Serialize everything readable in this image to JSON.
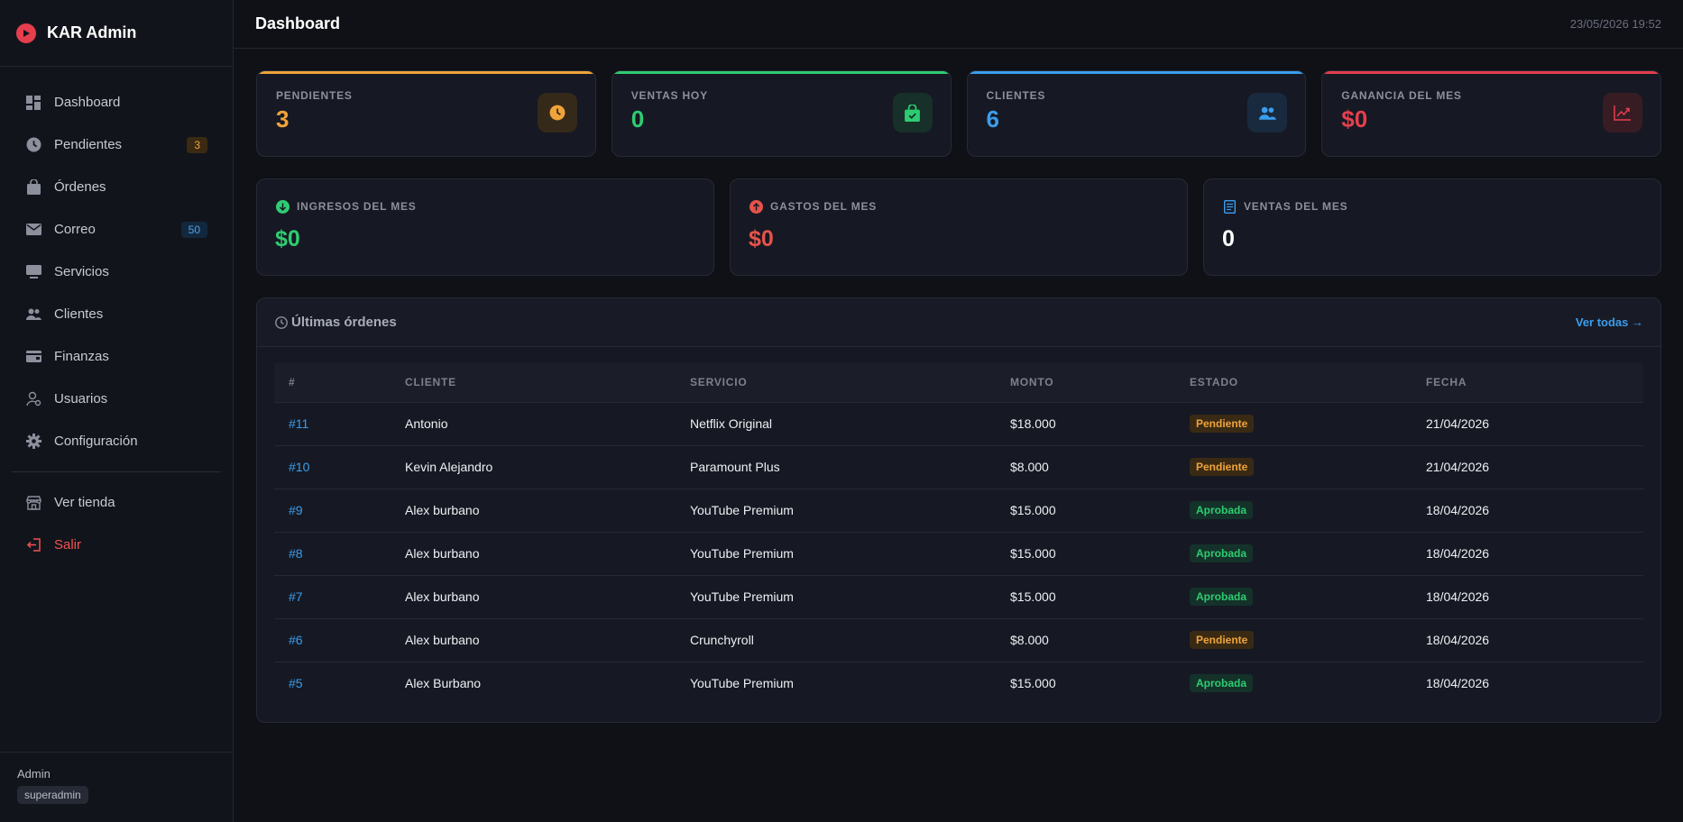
{
  "brand": {
    "title": "KAR Admin"
  },
  "sidebar": {
    "items": [
      {
        "label": "Dashboard",
        "icon": "dashboard-icon",
        "badge": ""
      },
      {
        "label": "Pendientes",
        "icon": "clock-icon",
        "badge": "3"
      },
      {
        "label": "Órdenes",
        "icon": "bag-icon",
        "badge": ""
      },
      {
        "label": "Correo",
        "icon": "mail-icon",
        "badge": "50"
      },
      {
        "label": "Servicios",
        "icon": "monitor-icon",
        "badge": ""
      },
      {
        "label": "Clientes",
        "icon": "users-icon",
        "badge": ""
      },
      {
        "label": "Finanzas",
        "icon": "wallet-icon",
        "badge": ""
      },
      {
        "label": "Usuarios",
        "icon": "user-settings-icon",
        "badge": ""
      },
      {
        "label": "Configuración",
        "icon": "gear-icon",
        "badge": ""
      }
    ],
    "store_label": "Ver tienda",
    "logout_label": "Salir",
    "footer": {
      "user": "Admin",
      "role": "superadmin"
    }
  },
  "header": {
    "title": "Dashboard",
    "datetime": "23/05/2026 19:52"
  },
  "stats": [
    {
      "label": "PENDIENTES",
      "value": "3",
      "icon": "clock-icon",
      "color": "#f0a33a"
    },
    {
      "label": "VENTAS HOY",
      "value": "0",
      "icon": "bag-check-icon",
      "color": "#2ecc71"
    },
    {
      "label": "CLIENTES",
      "value": "6",
      "icon": "users-icon",
      "color": "#3b9ded"
    },
    {
      "label": "GANANCIA DEL MES",
      "value": "$0",
      "icon": "trend-up-icon",
      "color": "#e53e4d"
    }
  ],
  "month": [
    {
      "label": "INGRESOS DEL MES",
      "value": "$0",
      "icon": "arrow-down-circle-icon",
      "color": "#2ecc71"
    },
    {
      "label": "GASTOS DEL MES",
      "value": "$0",
      "icon": "arrow-up-circle-icon",
      "color": "#e5534b"
    },
    {
      "label": "VENTAS DEL MES",
      "value": "0",
      "icon": "receipt-icon",
      "color": "#3b9ded"
    }
  ],
  "orders": {
    "title": "Últimas órdenes",
    "see_all": "Ver todas →",
    "columns": [
      "#",
      "CLIENTE",
      "SERVICIO",
      "MONTO",
      "ESTADO",
      "FECHA"
    ],
    "rows": [
      {
        "id": "#11",
        "client": "Antonio",
        "service": "Netflix Original",
        "amount": "$18.000",
        "status": "Pendiente",
        "date": "21/04/2026"
      },
      {
        "id": "#10",
        "client": "Kevin Alejandro",
        "service": "Paramount Plus",
        "amount": "$8.000",
        "status": "Pendiente",
        "date": "21/04/2026"
      },
      {
        "id": "#9",
        "client": "Alex burbano",
        "service": "YouTube Premium",
        "amount": "$15.000",
        "status": "Aprobada",
        "date": "18/04/2026"
      },
      {
        "id": "#8",
        "client": "Alex burbano",
        "service": "YouTube Premium",
        "amount": "$15.000",
        "status": "Aprobada",
        "date": "18/04/2026"
      },
      {
        "id": "#7",
        "client": "Alex burbano",
        "service": "YouTube Premium",
        "amount": "$15.000",
        "status": "Aprobada",
        "date": "18/04/2026"
      },
      {
        "id": "#6",
        "client": "Alex burbano",
        "service": "Crunchyroll",
        "amount": "$8.000",
        "status": "Pendiente",
        "date": "18/04/2026"
      },
      {
        "id": "#5",
        "client": "Alex Burbano",
        "service": "YouTube Premium",
        "amount": "$15.000",
        "status": "Aprobada",
        "date": "18/04/2026"
      }
    ]
  }
}
